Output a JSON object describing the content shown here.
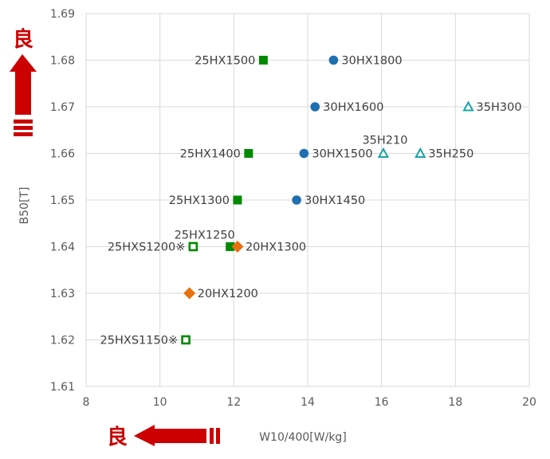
{
  "chart_data": {
    "type": "scatter",
    "xlabel": "W10/400[W/kg]",
    "ylabel": "B50[T]",
    "xlim": [
      8,
      20
    ],
    "ylim": [
      1.61,
      1.69
    ],
    "xticks": [
      "8",
      "10",
      "12",
      "14",
      "16",
      "18",
      "20"
    ],
    "yticks": [
      "1.61",
      "1.62",
      "1.63",
      "1.64",
      "1.65",
      "1.66",
      "1.67",
      "1.68",
      "1.69"
    ],
    "grid": true,
    "indicators": {
      "y_axis_good": "良",
      "x_axis_good": "良"
    },
    "colors": {
      "green": "#008a00",
      "blue": "#1f6fb2",
      "teal": "#1aa3a3",
      "orange": "#e8700f",
      "good_arrow": "#cc0000"
    },
    "points": [
      {
        "label": "25HX1500",
        "x": 12.8,
        "y": 1.68,
        "marker": "square",
        "color": "#008a00",
        "label_side": "left"
      },
      {
        "label": "30HX1800",
        "x": 14.7,
        "y": 1.68,
        "marker": "circle",
        "color": "#1f6fb2",
        "label_side": "right"
      },
      {
        "label": "30HX1600",
        "x": 14.2,
        "y": 1.67,
        "marker": "circle",
        "color": "#1f6fb2",
        "label_side": "right"
      },
      {
        "label": "35H300",
        "x": 18.35,
        "y": 1.67,
        "marker": "triangle-open",
        "color": "#1aa3a3",
        "label_side": "right"
      },
      {
        "label": "25HX1400",
        "x": 12.4,
        "y": 1.66,
        "marker": "square",
        "color": "#008a00",
        "label_side": "left"
      },
      {
        "label": "30HX1500",
        "x": 13.9,
        "y": 1.66,
        "marker": "circle",
        "color": "#1f6fb2",
        "label_side": "right"
      },
      {
        "label": "35H210",
        "x": 16.05,
        "y": 1.66,
        "marker": "triangle-open",
        "color": "#1aa3a3",
        "label_side": "above"
      },
      {
        "label": "35H250",
        "x": 17.05,
        "y": 1.66,
        "marker": "triangle-open",
        "color": "#1aa3a3",
        "label_side": "right"
      },
      {
        "label": "25HX1300",
        "x": 12.1,
        "y": 1.65,
        "marker": "square",
        "color": "#008a00",
        "label_side": "left"
      },
      {
        "label": "30HX1450",
        "x": 13.7,
        "y": 1.65,
        "marker": "circle",
        "color": "#1f6fb2",
        "label_side": "right"
      },
      {
        "label": "25HX1250",
        "x": 11.9,
        "y": 1.64,
        "marker": "square",
        "color": "#008a00",
        "label_side": "above-left"
      },
      {
        "label": "20HX1300",
        "x": 12.1,
        "y": 1.64,
        "marker": "diamond",
        "color": "#e8700f",
        "label_side": "right"
      },
      {
        "label": "25HXS1200※",
        "x": 10.9,
        "y": 1.64,
        "marker": "square-open",
        "color": "#008a00",
        "label_side": "left"
      },
      {
        "label": "20HX1200",
        "x": 10.8,
        "y": 1.63,
        "marker": "diamond",
        "color": "#e8700f",
        "label_side": "right"
      },
      {
        "label": "25HXS1150※",
        "x": 10.7,
        "y": 1.62,
        "marker": "square-open",
        "color": "#008a00",
        "label_side": "left"
      }
    ]
  }
}
